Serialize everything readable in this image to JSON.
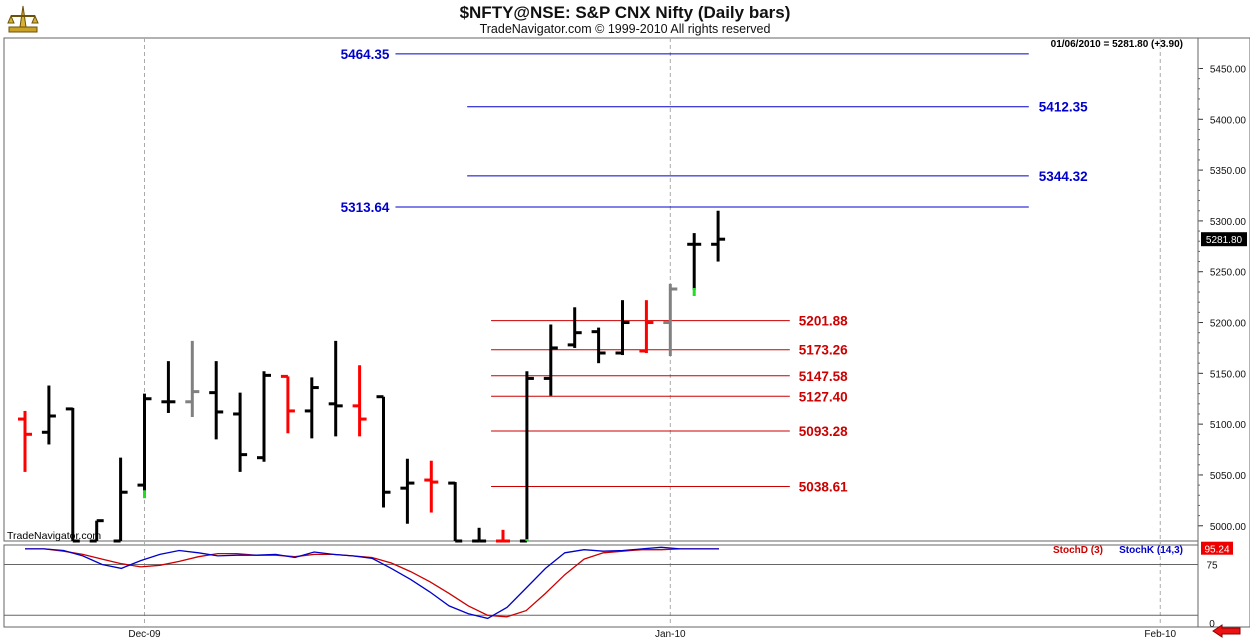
{
  "header": {
    "title": "$NFTY@NSE:  S&P CNX Nifty  (Daily bars)",
    "subtitle": "TradeNavigator.com © 1999-2010 All rights reserved"
  },
  "status": {
    "readout": "01/06/2010 = 5281.80 (+3.90)"
  },
  "watermark": "TradeNavigator.com",
  "colors": {
    "up": "#000000",
    "down": "#ff0000",
    "neutral": "#808080",
    "resistance": "#0000cc",
    "support": "#cc0000"
  },
  "chart_data": [
    {
      "type": "bar",
      "title": "$NFTY@NSE:  S&P CNX Nifty  (Daily bars)",
      "price_label": "5281.80",
      "ylim": [
        4985,
        5480
      ],
      "y_ticks": [
        "5450.00",
        "5400.00",
        "5350.00",
        "5300.00",
        "5250.00",
        "5200.00",
        "5150.00",
        "5100.00",
        "5050.00",
        "5000.00"
      ],
      "x_ticks": [
        {
          "label": "Dec-09",
          "index": 5
        },
        {
          "label": "Jan-10",
          "index": 27
        },
        {
          "label": "Feb-10",
          "index": 47.5
        }
      ],
      "bars": [
        {
          "o": 5105,
          "h": 5113,
          "l": 5053,
          "c": 5090,
          "col": "down"
        },
        {
          "o": 5092,
          "h": 5138,
          "l": 5080,
          "c": 5108,
          "col": "up"
        },
        {
          "o": 5115,
          "h": 5116,
          "l": 4985,
          "c": 4985,
          "col": "up"
        },
        {
          "o": 4985,
          "h": 5005,
          "l": 4985,
          "c": 5005,
          "col": "up"
        },
        {
          "o": 4985,
          "h": 5067,
          "l": 4985,
          "c": 5033,
          "col": "up"
        },
        {
          "o": 5040,
          "h": 5130,
          "l": 5033,
          "c": 5125,
          "col": "up"
        },
        {
          "o": 5122,
          "h": 5162,
          "l": 5111,
          "c": 5122,
          "col": "up"
        },
        {
          "o": 5122,
          "h": 5182,
          "l": 5107,
          "c": 5132,
          "col": "neutral"
        },
        {
          "o": 5131,
          "h": 5162,
          "l": 5085,
          "c": 5112,
          "col": "up"
        },
        {
          "o": 5110,
          "h": 5131,
          "l": 5053,
          "c": 5070,
          "col": "up"
        },
        {
          "o": 5067,
          "h": 5152,
          "l": 5063,
          "c": 5148,
          "col": "up"
        },
        {
          "o": 5147,
          "h": 5147,
          "l": 5091,
          "c": 5113,
          "col": "down"
        },
        {
          "o": 5113,
          "h": 5146,
          "l": 5086,
          "c": 5136,
          "col": "up"
        },
        {
          "o": 5120,
          "h": 5182,
          "l": 5088,
          "c": 5118,
          "col": "up"
        },
        {
          "o": 5118,
          "h": 5158,
          "l": 5088,
          "c": 5105,
          "col": "down"
        },
        {
          "o": 5127,
          "h": 5127,
          "l": 5018,
          "c": 5033,
          "col": "up"
        },
        {
          "o": 5037,
          "h": 5066,
          "l": 5002,
          "c": 5042,
          "col": "up"
        },
        {
          "o": 5045,
          "h": 5064,
          "l": 5013,
          "c": 5043,
          "col": "down"
        },
        {
          "o": 5042,
          "h": 5043,
          "l": 4985,
          "c": 4985,
          "col": "up"
        },
        {
          "o": 4985,
          "h": 4998,
          "l": 4985,
          "c": 4985,
          "col": "up"
        },
        {
          "o": 4985,
          "h": 4996,
          "l": 4985,
          "c": 4985,
          "col": "down"
        },
        {
          "o": 4985,
          "h": 5152,
          "l": 4985,
          "c": 5145,
          "col": "up"
        },
        {
          "o": 5145,
          "h": 5198,
          "l": 5128,
          "c": 5175,
          "col": "up"
        },
        {
          "o": 5178,
          "h": 5215,
          "l": 5175,
          "c": 5190,
          "col": "up"
        },
        {
          "o": 5191,
          "h": 5195,
          "l": 5160,
          "c": 5170,
          "col": "up"
        },
        {
          "o": 5170,
          "h": 5222,
          "l": 5168,
          "c": 5200,
          "col": "up"
        },
        {
          "o": 5172,
          "h": 5222,
          "l": 5170,
          "c": 5200,
          "col": "down"
        },
        {
          "o": 5200,
          "h": 5238,
          "l": 5167,
          "c": 5233,
          "col": "neutral"
        },
        {
          "o": 5277,
          "h": 5288,
          "l": 5232,
          "c": 5277,
          "col": "up"
        },
        {
          "o": 5277,
          "h": 5310,
          "l": 5260,
          "c": 5282,
          "col": "up"
        }
      ],
      "levels": [
        {
          "label": "5464.35",
          "value": 5464.35,
          "role": "resistance",
          "from": 15.5,
          "to": 42
        },
        {
          "label": "5412.35",
          "value": 5412.35,
          "role": "resistance",
          "from": 18.5,
          "to": 42
        },
        {
          "label": "5344.32",
          "value": 5344.32,
          "role": "resistance",
          "from": 18.5,
          "to": 42
        },
        {
          "label": "5313.64",
          "value": 5313.64,
          "role": "resistance",
          "from": 15.5,
          "to": 42
        },
        {
          "label": "5201.88",
          "value": 5201.88,
          "role": "support",
          "from": 19.5,
          "to": 32
        },
        {
          "label": "5173.26",
          "value": 5173.26,
          "role": "support",
          "from": 19.5,
          "to": 32
        },
        {
          "label": "5147.58",
          "value": 5147.58,
          "role": "support",
          "from": 19.5,
          "to": 32
        },
        {
          "label": "5127.40",
          "value": 5127.4,
          "role": "support",
          "from": 19.5,
          "to": 32
        },
        {
          "label": "5093.28",
          "value": 5093.28,
          "role": "support",
          "from": 19.5,
          "to": 32
        },
        {
          "label": "5038.61",
          "value": 5038.61,
          "role": "support",
          "from": 19.5,
          "to": 32
        }
      ]
    },
    {
      "type": "line",
      "ylim": [
        -5,
        100
      ],
      "y_ticks": [
        "75",
        "0"
      ],
      "reference_lines": [
        75,
        10
      ],
      "last_value_label": "95.24",
      "series": [
        {
          "name": "StochD (3)",
          "color": "#cc0000",
          "values": [
            95,
            95,
            92,
            88,
            82,
            76,
            72,
            74,
            79,
            85,
            89,
            89,
            87,
            87,
            85,
            88,
            88,
            86,
            84,
            77,
            66,
            53,
            38,
            22,
            10,
            8,
            16,
            38,
            62,
            82,
            90,
            92,
            94,
            94,
            95,
            95,
            95
          ]
        },
        {
          "name": "StochK (14,3)",
          "color": "#0000cc",
          "values": [
            95,
            95,
            93,
            86,
            75,
            70,
            80,
            88,
            93,
            90,
            86,
            87,
            87,
            88,
            84,
            91,
            88,
            86,
            83,
            70,
            56,
            40,
            22,
            12,
            6,
            20,
            45,
            70,
            90,
            94,
            92,
            93,
            95,
            97,
            95,
            95,
            95
          ]
        }
      ]
    }
  ]
}
